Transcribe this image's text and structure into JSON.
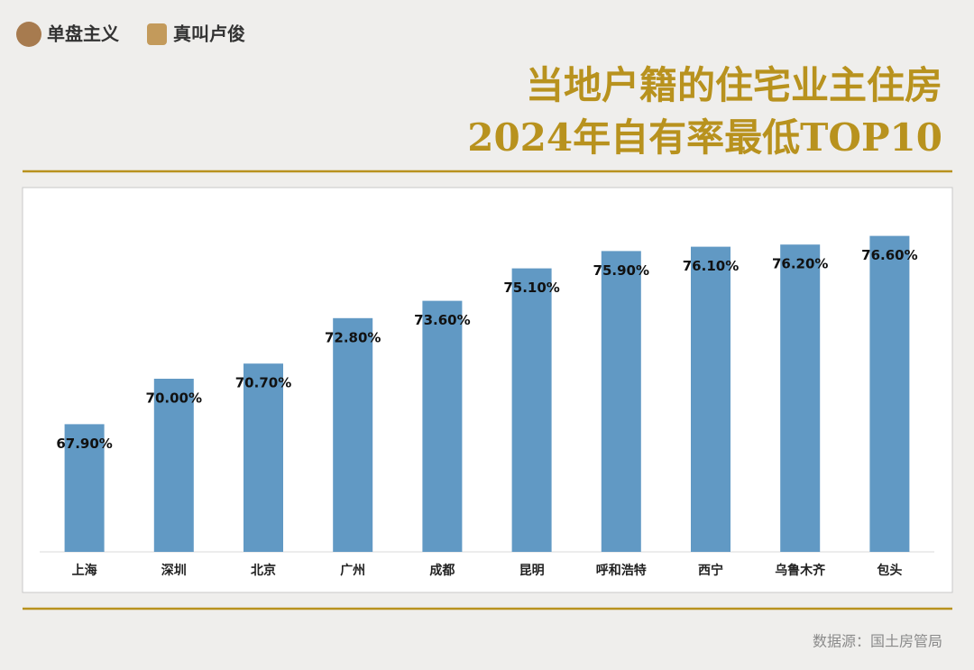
{
  "brands": [
    "单盘主义",
    "真叫卢俊"
  ],
  "source": "数据源：国土房管局",
  "chart_data": {
    "type": "bar",
    "title": [
      "当地户籍的住宅业主住房",
      "2024年自有率最低TOP10"
    ],
    "categories": [
      "上海",
      "深圳",
      "北京",
      "广州",
      "成都",
      "昆明",
      "呼和浩特",
      "西宁",
      "乌鲁木齐",
      "包头"
    ],
    "values": [
      67.9,
      70.0,
      70.7,
      72.8,
      73.6,
      75.1,
      75.9,
      76.1,
      76.2,
      76.6
    ],
    "value_labels": [
      "67.90%",
      "70.00%",
      "70.70%",
      "72.80%",
      "73.60%",
      "75.10%",
      "75.90%",
      "76.10%",
      "76.20%",
      "76.60%"
    ],
    "color": "#6199c4",
    "ylim": [
      62,
      78
    ]
  }
}
